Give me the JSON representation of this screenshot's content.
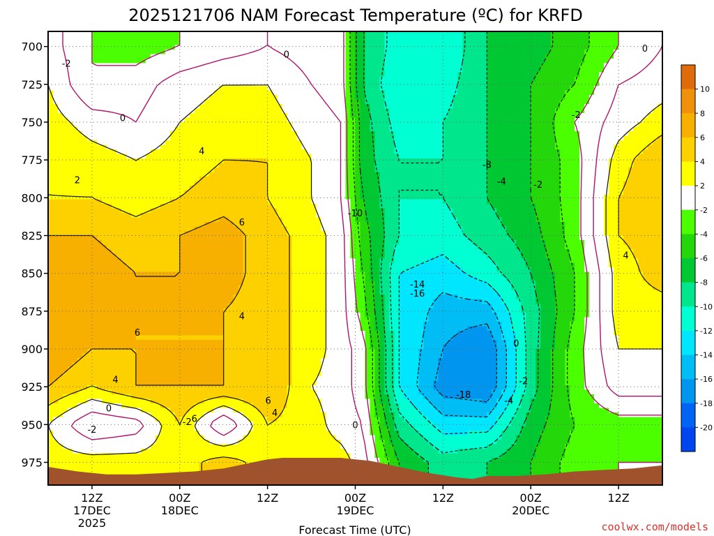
{
  "chart_data": {
    "type": "heatmap",
    "title": "2025121706 NAM Forecast Temperature (ºC) for KRFD",
    "xlabel": "Forecast Time (UTC)",
    "ylabel": "",
    "y_scale": "pressure (hPa), decreasing upward",
    "ylim": [
      990,
      690
    ],
    "y_ticks": [
      700,
      725,
      750,
      775,
      800,
      825,
      850,
      875,
      900,
      925,
      950,
      975
    ],
    "x_ticks": [
      {
        "hours": 6,
        "label": "12Z",
        "sub1": "17DEC",
        "sub2": "2025"
      },
      {
        "hours": 18,
        "label": "00Z",
        "sub1": "18DEC",
        "sub2": ""
      },
      {
        "hours": 30,
        "label": "12Z",
        "sub1": "",
        "sub2": ""
      },
      {
        "hours": 42,
        "label": "00Z",
        "sub1": "19DEC",
        "sub2": ""
      },
      {
        "hours": 54,
        "label": "12Z",
        "sub1": "",
        "sub2": ""
      },
      {
        "hours": 66,
        "label": "00Z",
        "sub1": "20DEC",
        "sub2": ""
      },
      {
        "hours": 78,
        "label": "12Z",
        "sub1": "",
        "sub2": ""
      }
    ],
    "xlim_hours": [
      0,
      84
    ],
    "colorbar": {
      "levels": [
        10,
        8,
        6,
        4,
        2,
        -2,
        -4,
        -6,
        -8,
        -10,
        -12,
        -14,
        -16,
        -18,
        -20
      ],
      "colors": [
        "#e06b0a",
        "#f0910c",
        "#f8b000",
        "#fdd000",
        "#ffff00",
        "#ffffff",
        "#4cff00",
        "#24d70a",
        "#00c832",
        "#00e68c",
        "#00ffd2",
        "#00e6ff",
        "#00bef5",
        "#0096f0",
        "#0064f5",
        "#0046f0"
      ]
    },
    "temperature_field": {
      "times_hours": [
        0,
        6,
        12,
        18,
        24,
        30,
        36,
        40,
        43,
        48,
        54,
        60,
        66,
        72,
        78,
        84
      ],
      "levels_hpa": [
        975,
        950,
        925,
        900,
        875,
        850,
        825,
        800,
        775,
        750,
        725,
        700
      ],
      "rows": [
        [
          3,
          3,
          3,
          3,
          5,
          3,
          3,
          3,
          1,
          -6,
          -9,
          -8,
          -6,
          -3,
          -2,
          -2
        ],
        [
          2,
          -2,
          -1,
          4,
          -2,
          4,
          3,
          1,
          0,
          -9,
          -13,
          -13,
          -7,
          -4,
          -3,
          -3
        ],
        [
          6,
          4,
          6,
          6,
          6,
          6,
          2,
          1,
          -1,
          -12,
          -17,
          -18,
          -9,
          -3,
          1,
          1
        ],
        [
          8,
          6,
          6,
          6,
          6,
          5,
          3,
          1,
          -1,
          -12,
          -16,
          -18,
          -9,
          -3,
          2,
          2
        ],
        [
          8,
          7,
          6,
          6,
          6,
          5,
          3,
          1,
          -3,
          -12,
          -15,
          -15,
          -9,
          -4,
          3,
          3
        ],
        [
          8,
          7,
          6,
          6,
          7,
          5,
          3,
          1,
          -4,
          -12,
          -13,
          -11,
          -8,
          -4,
          3,
          5
        ],
        [
          6,
          6,
          5,
          6,
          7,
          5,
          3,
          1,
          -5,
          -10,
          -11,
          -9,
          -7,
          -3,
          4,
          5
        ],
        [
          4,
          4,
          3,
          4,
          5,
          4,
          2,
          0,
          -6,
          -10,
          -10,
          -8,
          -6,
          -3,
          4,
          6
        ],
        [
          4,
          3,
          2,
          3,
          4,
          4,
          2,
          0,
          -7,
          -10,
          -10,
          -8,
          -6,
          -3,
          3,
          6
        ],
        [
          3,
          1,
          0,
          2,
          3,
          3,
          1,
          0,
          -7,
          -11,
          -10,
          -8,
          -6,
          -2,
          1,
          3
        ],
        [
          2,
          -2,
          -1,
          1,
          2,
          2,
          0,
          -1,
          -8,
          -12,
          -11,
          -8,
          -6,
          -4,
          0,
          1
        ],
        [
          1,
          -2,
          -3,
          -2,
          -1,
          0,
          -1,
          -1,
          -8,
          -11,
          -12,
          -8,
          -7,
          -5,
          -2,
          0
        ]
      ]
    },
    "contour_labels": [
      {
        "text": "-2",
        "hours": 2.5,
        "hpa": 711
      },
      {
        "text": "0",
        "hours": 10.2,
        "hpa": 747
      },
      {
        "text": "0",
        "hours": 32.6,
        "hpa": 705
      },
      {
        "text": "2",
        "hours": 4.0,
        "hpa": 788
      },
      {
        "text": "4",
        "hours": 21.0,
        "hpa": 769
      },
      {
        "text": "6",
        "hours": 26.5,
        "hpa": 816
      },
      {
        "text": "4",
        "hours": 26.5,
        "hpa": 878
      },
      {
        "text": "6",
        "hours": 12.2,
        "hpa": 889
      },
      {
        "text": "4",
        "hours": 9.2,
        "hpa": 920
      },
      {
        "text": "0",
        "hours": 8.3,
        "hpa": 939
      },
      {
        "text": "-2",
        "hours": 6.0,
        "hpa": 953
      },
      {
        "text": "-2",
        "hours": 19.0,
        "hpa": 948
      },
      {
        "text": "6",
        "hours": 20.0,
        "hpa": 946
      },
      {
        "text": "6",
        "hours": 30.1,
        "hpa": 934
      },
      {
        "text": "4",
        "hours": 31.0,
        "hpa": 942
      },
      {
        "text": "-10",
        "hours": 42.0,
        "hpa": 810
      },
      {
        "text": "0",
        "hours": 42.0,
        "hpa": 950
      },
      {
        "text": "-8",
        "hours": 60.0,
        "hpa": 778
      },
      {
        "text": "-14",
        "hours": 50.5,
        "hpa": 857
      },
      {
        "text": "-16",
        "hours": 50.5,
        "hpa": 863
      },
      {
        "text": "-18",
        "hours": 56.8,
        "hpa": 930
      },
      {
        "text": "-4",
        "hours": 62.0,
        "hpa": 789
      },
      {
        "text": "-2",
        "hours": 67.0,
        "hpa": 791
      },
      {
        "text": "-2",
        "hours": 72.2,
        "hpa": 745
      },
      {
        "text": "0",
        "hours": 81.6,
        "hpa": 701
      },
      {
        "text": "4",
        "hours": 79.0,
        "hpa": 838
      },
      {
        "text": "0",
        "hours": 64.0,
        "hpa": 896
      },
      {
        "text": "-2",
        "hours": 65.0,
        "hpa": 921
      },
      {
        "text": "-4",
        "hours": 63.0,
        "hpa": 934
      }
    ],
    "terrain": {
      "color": "#a0522d",
      "hours": [
        0,
        4,
        8,
        12,
        16,
        20,
        24,
        28,
        30,
        32,
        36,
        40,
        42,
        44,
        48,
        52,
        56,
        58,
        60,
        64,
        68,
        72,
        76,
        80,
        84
      ],
      "surface_hpa": [
        978,
        981,
        983,
        983,
        982,
        981,
        979,
        975,
        973,
        972,
        972,
        972,
        973,
        974,
        978,
        982,
        985,
        986,
        984,
        984,
        983,
        981,
        980,
        979,
        977
      ]
    }
  },
  "credit": "coolwx.com/models"
}
